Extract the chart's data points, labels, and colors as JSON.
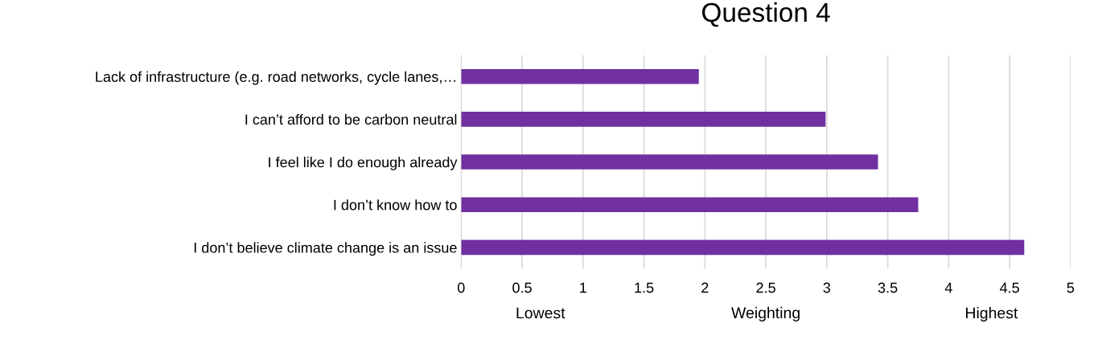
{
  "chart_data": {
    "type": "bar",
    "orientation": "horizontal",
    "title": "Question 4",
    "xlabel": "Weighting",
    "annotations": [
      "Lowest",
      "Highest"
    ],
    "categories": [
      "Lack of infrastructure (e.g. road networks, cycle lanes,…",
      "I can’t afford to be carbon neutral",
      "I feel like I do enough already",
      "I don’t know how to",
      "I don’t believe climate change is an issue"
    ],
    "values": [
      1.95,
      2.99,
      3.42,
      3.75,
      4.62
    ],
    "color": "#7030a0",
    "xlim": [
      0,
      5
    ],
    "xticks": [
      0,
      {
        "value": 0.5,
        "label": "0.5"
      },
      1,
      {
        "value": 1.5,
        "label": "1.5"
      },
      2,
      {
        "value": 2.5,
        "label": "2.5"
      },
      3,
      {
        "value": 3.5,
        "label": "3.5"
      },
      4,
      {
        "value": 4.5,
        "label": "4.5"
      },
      5
    ],
    "grid": "x",
    "legend": false
  }
}
